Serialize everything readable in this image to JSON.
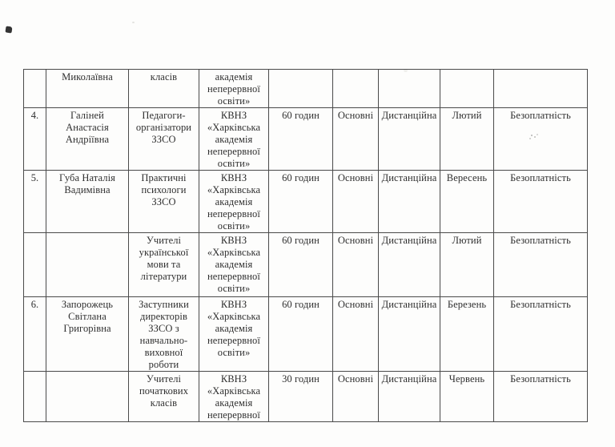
{
  "document": {
    "kind": "scanned-table-page",
    "language": "uk"
  },
  "colors": {
    "page_background": "#fdfdfc",
    "table_border": "#4a4a4a",
    "text": "#2f2f2f"
  },
  "table": {
    "note_visible_columns": [
      "row_number",
      "full_name",
      "position_category",
      "institution",
      "hours",
      "program_type",
      "form_of_study",
      "month",
      "payment"
    ],
    "rows": [
      {
        "num": "",
        "name": "Миколаївна",
        "position": "класів",
        "institution": "академія\nнеперервної\nосвіти»",
        "hours": "",
        "category": "",
        "form": "",
        "month": "",
        "payment": ""
      },
      {
        "num": "4.",
        "name": "Галіней\nАнастасія\nАндріївна",
        "position": "Педагоги-\nорганізатори\nЗЗСО",
        "institution": "КВНЗ\n«Харківська\nакадемія\nнеперервної\nосвіти»",
        "hours": "60 годин",
        "category": "Основні",
        "form": "Дистанційна",
        "month": "Лютий",
        "payment": "Безоплатність"
      },
      {
        "num": "5.",
        "name": "Губа Наталія\nВадимівна",
        "position": "Практичні\nпсихологи\nЗЗСО",
        "institution": "КВНЗ\n«Харківська\nакадемія\nнеперервної\nосвіти»",
        "hours": "60 годин",
        "category": "Основні",
        "form": "Дистанційна",
        "month": "Вересень",
        "payment": "Безоплатність"
      },
      {
        "num": "",
        "name": "",
        "position": "Учителі\nукраїнської\nмови та\nлітератури",
        "institution": "КВНЗ\n«Харківська\nакадемія\nнеперервної\nосвіти»",
        "hours": "60 годин",
        "category": "Основні",
        "form": "Дистанційна",
        "month": "Лютий",
        "payment": "Безоплатність"
      },
      {
        "num": "6.",
        "name": "Запорожець\nСвітлана\nГригорівна",
        "position": "Заступники\nдиректорів\nЗЗСО з\nнавчально-\nвиховної\nроботи",
        "institution": "КВНЗ\n«Харківська\nакадемія\nнеперервної\nосвіти»",
        "hours": "60 годин",
        "category": "Основні",
        "form": "Дистанційна",
        "month": "Березень",
        "payment": "Безоплатність"
      },
      {
        "num": "",
        "name": "",
        "position": "Учителі\nпочаткових\nкласів",
        "institution": "КВНЗ\n«Харківська\nакадемія\nнеперервної",
        "hours": "30 годин",
        "category": "Основні",
        "form": "Дистанційна",
        "month": "Червень",
        "payment": "Безоплатність"
      }
    ]
  }
}
